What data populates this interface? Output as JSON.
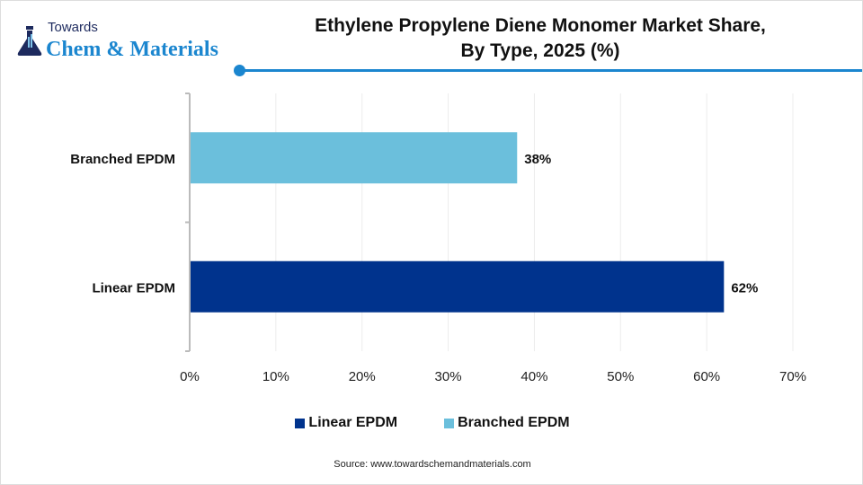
{
  "logo": {
    "small": "Towards",
    "big": "Chem & Materials"
  },
  "chart_data": {
    "type": "bar",
    "orientation": "horizontal",
    "title": "Ethylene Propylene Diene Monomer Market Share, By Type, 2025 (%)",
    "title_lines": [
      "Ethylene Propylene Diene Monomer Market Share,",
      "By Type, 2025 (%)"
    ],
    "categories": [
      "Branched EPDM",
      "Linear EPDM"
    ],
    "values": [
      38,
      62
    ],
    "data_labels": [
      "38%",
      "62%"
    ],
    "colors": [
      "#6bbfdc",
      "#00338d"
    ],
    "xlim": [
      0,
      70
    ],
    "xticks": [
      "0%",
      "10%",
      "20%",
      "30%",
      "40%",
      "50%",
      "60%",
      "70%"
    ],
    "grid": true,
    "legend": {
      "position": "bottom",
      "entries": [
        {
          "label": "Linear EPDM",
          "color": "#00338d"
        },
        {
          "label": "Branched EPDM",
          "color": "#6bbfdc"
        }
      ]
    }
  },
  "source": "Source: www.towardschemandmaterials.com"
}
